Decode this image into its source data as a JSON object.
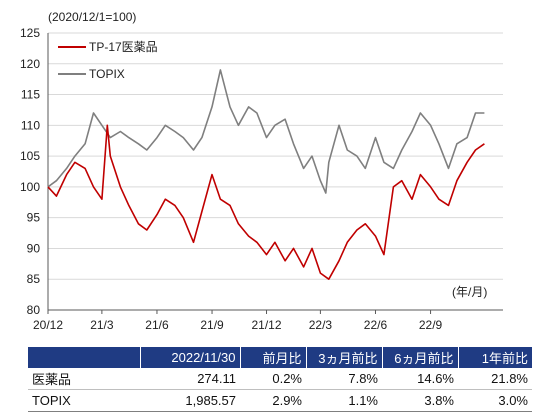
{
  "unit_note": "(2020/12/1=100)",
  "ym_label": "(年/月)",
  "chart_data": {
    "type": "line",
    "ylim": [
      80,
      125
    ],
    "yticks": [
      80,
      85,
      90,
      95,
      100,
      105,
      110,
      115,
      120,
      125
    ],
    "xlim": [
      "2020-12-01",
      "2022-12-31"
    ],
    "xticks": [
      {
        "date": "2020-12-01",
        "label": "20/12"
      },
      {
        "date": "2021-03-01",
        "label": "21/3"
      },
      {
        "date": "2021-06-01",
        "label": "21/6"
      },
      {
        "date": "2021-09-01",
        "label": "21/9"
      },
      {
        "date": "2021-12-01",
        "label": "21/12"
      },
      {
        "date": "2022-03-01",
        "label": "22/3"
      },
      {
        "date": "2022-06-01",
        "label": "22/6"
      },
      {
        "date": "2022-09-01",
        "label": "22/9"
      }
    ],
    "grid": "horizontal",
    "legend": "top-left",
    "series": [
      {
        "name": "TP-17医薬品",
        "color": "#c00000",
        "points": [
          [
            "2020-12-01",
            100
          ],
          [
            "2020-12-15",
            98.5
          ],
          [
            "2021-01-01",
            102
          ],
          [
            "2021-01-15",
            104
          ],
          [
            "2021-02-01",
            103
          ],
          [
            "2021-02-15",
            100
          ],
          [
            "2021-03-01",
            98
          ],
          [
            "2021-03-10",
            110
          ],
          [
            "2021-03-15",
            105
          ],
          [
            "2021-04-01",
            100
          ],
          [
            "2021-04-15",
            97
          ],
          [
            "2021-05-01",
            94
          ],
          [
            "2021-05-15",
            93
          ],
          [
            "2021-06-01",
            95.5
          ],
          [
            "2021-06-15",
            98
          ],
          [
            "2021-07-01",
            97
          ],
          [
            "2021-07-15",
            95
          ],
          [
            "2021-08-01",
            91
          ],
          [
            "2021-08-15",
            96
          ],
          [
            "2021-09-01",
            102
          ],
          [
            "2021-09-15",
            98
          ],
          [
            "2021-10-01",
            97
          ],
          [
            "2021-10-15",
            94
          ],
          [
            "2021-11-01",
            92
          ],
          [
            "2021-11-15",
            91
          ],
          [
            "2021-12-01",
            89
          ],
          [
            "2021-12-15",
            91
          ],
          [
            "2022-01-01",
            88
          ],
          [
            "2022-01-15",
            90
          ],
          [
            "2022-02-01",
            87
          ],
          [
            "2022-02-15",
            90
          ],
          [
            "2022-03-01",
            86
          ],
          [
            "2022-03-15",
            85
          ],
          [
            "2022-04-01",
            88
          ],
          [
            "2022-04-15",
            91
          ],
          [
            "2022-05-01",
            93
          ],
          [
            "2022-05-15",
            94
          ],
          [
            "2022-06-01",
            92
          ],
          [
            "2022-06-15",
            89
          ],
          [
            "2022-07-01",
            100
          ],
          [
            "2022-07-15",
            101
          ],
          [
            "2022-08-01",
            98
          ],
          [
            "2022-08-15",
            102
          ],
          [
            "2022-09-01",
            100
          ],
          [
            "2022-09-15",
            98
          ],
          [
            "2022-10-01",
            97
          ],
          [
            "2022-10-15",
            101
          ],
          [
            "2022-11-01",
            104
          ],
          [
            "2022-11-15",
            106
          ],
          [
            "2022-11-30",
            107
          ]
        ]
      },
      {
        "name": "TOPIX",
        "color": "#7f7f7f",
        "points": [
          [
            "2020-12-01",
            100
          ],
          [
            "2020-12-15",
            101
          ],
          [
            "2021-01-01",
            103
          ],
          [
            "2021-01-15",
            105
          ],
          [
            "2021-02-01",
            107
          ],
          [
            "2021-02-15",
            112
          ],
          [
            "2021-03-01",
            110
          ],
          [
            "2021-03-15",
            108
          ],
          [
            "2021-04-01",
            109
          ],
          [
            "2021-04-15",
            108
          ],
          [
            "2021-05-01",
            107
          ],
          [
            "2021-05-15",
            106
          ],
          [
            "2021-06-01",
            108
          ],
          [
            "2021-06-15",
            110
          ],
          [
            "2021-07-01",
            109
          ],
          [
            "2021-07-15",
            108
          ],
          [
            "2021-08-01",
            106
          ],
          [
            "2021-08-15",
            108
          ],
          [
            "2021-09-01",
            113
          ],
          [
            "2021-09-15",
            119
          ],
          [
            "2021-10-01",
            113
          ],
          [
            "2021-10-15",
            110
          ],
          [
            "2021-11-01",
            113
          ],
          [
            "2021-11-15",
            112
          ],
          [
            "2021-12-01",
            108
          ],
          [
            "2021-12-15",
            110
          ],
          [
            "2022-01-01",
            111
          ],
          [
            "2022-01-15",
            107
          ],
          [
            "2022-02-01",
            103
          ],
          [
            "2022-02-15",
            105
          ],
          [
            "2022-03-01",
            101
          ],
          [
            "2022-03-10",
            99
          ],
          [
            "2022-03-15",
            104
          ],
          [
            "2022-04-01",
            110
          ],
          [
            "2022-04-15",
            106
          ],
          [
            "2022-05-01",
            105
          ],
          [
            "2022-05-15",
            103
          ],
          [
            "2022-06-01",
            108
          ],
          [
            "2022-06-15",
            104
          ],
          [
            "2022-07-01",
            103
          ],
          [
            "2022-07-15",
            106
          ],
          [
            "2022-08-01",
            109
          ],
          [
            "2022-08-15",
            112
          ],
          [
            "2022-09-01",
            110
          ],
          [
            "2022-09-15",
            107
          ],
          [
            "2022-10-01",
            103
          ],
          [
            "2022-10-15",
            107
          ],
          [
            "2022-11-01",
            108
          ],
          [
            "2022-11-15",
            112
          ],
          [
            "2022-11-30",
            112
          ]
        ]
      }
    ]
  },
  "table": {
    "headers": [
      "",
      "2022/11/30",
      "前月比",
      "3ヵ月前比",
      "6ヵ月前比",
      "1年前比"
    ],
    "rows": [
      [
        "医薬品",
        "274.11",
        "0.2%",
        "7.8%",
        "14.6%",
        "21.8%"
      ],
      [
        "TOPIX",
        "1,985.57",
        "2.9%",
        "1.1%",
        "3.8%",
        "3.0%"
      ]
    ]
  }
}
